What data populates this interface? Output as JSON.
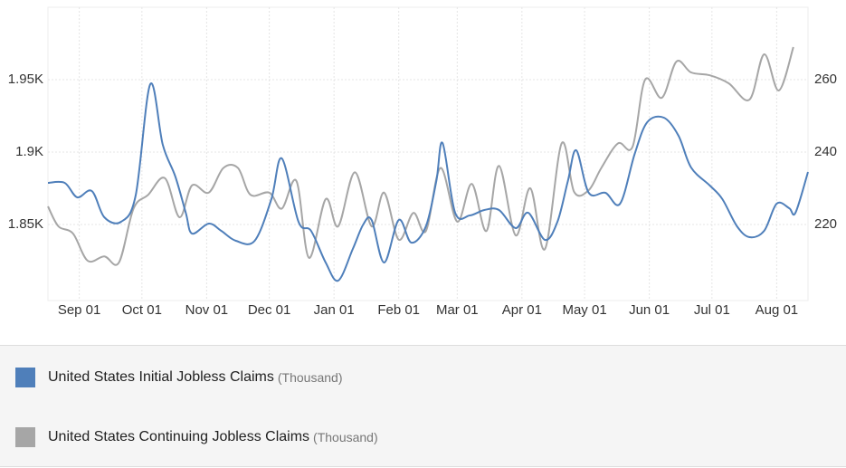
{
  "chart_data": {
    "type": "line",
    "xlim": [
      -15,
      349
    ],
    "xticks": [
      {
        "value": 0,
        "label": "Sep 01"
      },
      {
        "value": 30,
        "label": "Oct 01"
      },
      {
        "value": 61,
        "label": "Nov 01"
      },
      {
        "value": 91,
        "label": "Dec 01"
      },
      {
        "value": 122,
        "label": "Jan 01"
      },
      {
        "value": 153,
        "label": "Feb 01"
      },
      {
        "value": 181,
        "label": "Mar 01"
      },
      {
        "value": 212,
        "label": "Apr 01"
      },
      {
        "value": 242,
        "label": "May 01"
      },
      {
        "value": 273,
        "label": "Jun 01"
      },
      {
        "value": 303,
        "label": "Jul 01"
      },
      {
        "value": 334,
        "label": "Aug 01"
      }
    ],
    "ylim": [
      1797.5,
      2000
    ],
    "yticks": [
      {
        "value": 1850,
        "label": "1.85K"
      },
      {
        "value": 1900,
        "label": "1.9K"
      },
      {
        "value": 1950,
        "label": "1.95K"
      }
    ],
    "y2lim": [
      199,
      280
    ],
    "y2ticks": [
      220,
      240,
      260
    ],
    "grid": true,
    "series": [
      {
        "name": "United States Initial Jobless Claims",
        "unit": "(Thousand)",
        "color": "#4f7fba",
        "axis": "y2",
        "x": [
          -15,
          -7,
          -1,
          6,
          12,
          20,
          27,
          34,
          40,
          46,
          51,
          54,
          62,
          68,
          75,
          84,
          92,
          97,
          105,
          111,
          118,
          124,
          131,
          136,
          140,
          146,
          153,
          159,
          166,
          171,
          174,
          180,
          187,
          194,
          201,
          209,
          215,
          223,
          229,
          234,
          238,
          244,
          252,
          259,
          266,
          272,
          280,
          287,
          293,
          302,
          308,
          315,
          321,
          328,
          334,
          340,
          343,
          349
        ],
        "values": [
          231.5,
          231.5,
          227.5,
          229.25,
          222,
          220.75,
          228,
          258.75,
          242,
          233.25,
          223.25,
          217.5,
          220.25,
          218.25,
          215.5,
          215.5,
          227,
          238.25,
          220.75,
          218.25,
          209.5,
          204.5,
          213.25,
          220,
          221.25,
          209.5,
          221.25,
          215,
          219.5,
          232,
          242.5,
          223.25,
          222.5,
          224,
          224,
          219,
          223.25,
          215.75,
          220.75,
          232,
          240.5,
          228.75,
          228.75,
          225.75,
          239.5,
          248.25,
          249.5,
          244.5,
          235.75,
          230.75,
          227,
          219.5,
          216.5,
          218.25,
          225.75,
          224.5,
          223.25,
          234.5
        ]
      },
      {
        "name": "United States Continuing Jobless Claims",
        "unit": "(Thousand)",
        "color": "#a6a6a6",
        "axis": "y",
        "x": [
          -15,
          -10,
          -3,
          4,
          12,
          19,
          26,
          33,
          41,
          48,
          54,
          62,
          69,
          76,
          82,
          91,
          97,
          104,
          110,
          118,
          124,
          132,
          140,
          146,
          153,
          160,
          166,
          173,
          181,
          188,
          195,
          201,
          209,
          216,
          223,
          231,
          237,
          244,
          250,
          258,
          265,
          271,
          279,
          286,
          293,
          302,
          311,
          321,
          328,
          335,
          342
        ],
        "values": [
          1862.5,
          1848.75,
          1843.75,
          1825,
          1828,
          1823.75,
          1861,
          1870.5,
          1882,
          1855,
          1877,
          1872,
          1889,
          1889,
          1870.5,
          1872,
          1861,
          1880,
          1827,
          1867.5,
          1848.75,
          1886,
          1848.75,
          1872,
          1839.5,
          1858,
          1845.5,
          1889,
          1852,
          1878,
          1845.5,
          1890.5,
          1842.5,
          1875,
          1833,
          1906,
          1872.5,
          1873.75,
          1889,
          1906,
          1903.75,
          1950,
          1937.5,
          1962.5,
          1955,
          1953,
          1947.5,
          1936.25,
          1967.5,
          1942.5,
          1972.5
        ]
      }
    ]
  }
}
